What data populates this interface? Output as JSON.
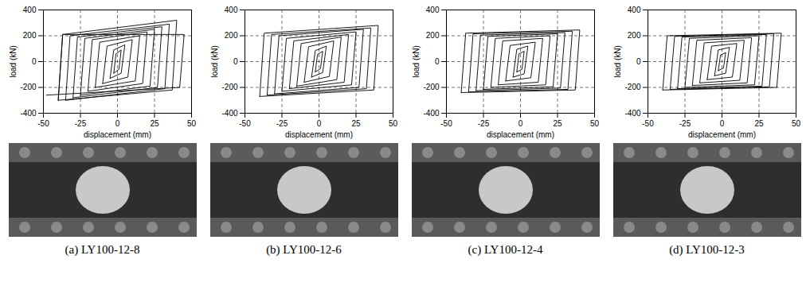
{
  "chart_data": [
    {
      "type": "line",
      "caption": "(a) LY100-12-8",
      "x_label": "displacement (mm)",
      "y_label": "load (kN)",
      "xlim": [
        -50,
        50
      ],
      "xticks": [
        -50,
        -25,
        0,
        25,
        50
      ],
      "ylim": [
        -400,
        400
      ],
      "yticks": [
        -400,
        -200,
        0,
        200,
        400
      ],
      "grid": true,
      "color": "#000000",
      "x": [
        -2.5,
        -1,
        2.5,
        1,
        -2.5,
        null,
        -5,
        -2.5,
        5,
        2.5,
        -5,
        null,
        -10,
        -7,
        10,
        7,
        -10,
        null,
        -15,
        -12,
        15,
        12,
        -15,
        null,
        -20,
        -17,
        20,
        17,
        -20,
        null,
        -25,
        -22,
        25,
        22,
        -25,
        null,
        -30,
        -27,
        30,
        27,
        -30,
        null,
        -35,
        -32,
        35,
        32,
        -35,
        null,
        -40,
        -37,
        40,
        37,
        -40,
        -37,
        45,
        42,
        -48
      ],
      "values": [
        -90,
        60,
        90,
        -60,
        -90,
        null,
        -130,
        90,
        130,
        -90,
        -130,
        null,
        -170,
        120,
        170,
        -120,
        -170,
        null,
        -200,
        150,
        200,
        -150,
        -200,
        null,
        -230,
        170,
        230,
        -170,
        -230,
        null,
        -260,
        180,
        250,
        -190,
        -260,
        null,
        -280,
        190,
        270,
        -200,
        -280,
        null,
        -300,
        200,
        290,
        -210,
        -300,
        null,
        -300,
        210,
        320,
        -220,
        -300,
        210,
        210,
        -200,
        -260
      ]
    },
    {
      "type": "line",
      "caption": "(b) LY100-12-6",
      "x_label": "displacement (mm)",
      "y_label": "load (kN)",
      "xlim": [
        -50,
        50
      ],
      "xticks": [
        -50,
        -25,
        0,
        25,
        50
      ],
      "ylim": [
        -400,
        400
      ],
      "yticks": [
        -400,
        -200,
        0,
        200,
        400
      ],
      "grid": true,
      "color": "#000000",
      "x": [
        -2.5,
        -1,
        2.5,
        1,
        -2.5,
        null,
        -5,
        -2.5,
        5,
        2.5,
        -5,
        null,
        -10,
        -7,
        10,
        7,
        -10,
        null,
        -15,
        -12,
        15,
        12,
        -15,
        null,
        -20,
        -17,
        20,
        17,
        -20,
        null,
        -25,
        -22,
        25,
        22,
        -25,
        null,
        -30,
        -27,
        30,
        27,
        -30,
        null,
        -35,
        -32,
        35,
        32,
        -35,
        null,
        -40,
        -37,
        40,
        37,
        -40
      ],
      "values": [
        -80,
        55,
        80,
        -55,
        -80,
        null,
        -120,
        85,
        120,
        -85,
        -120,
        null,
        -160,
        115,
        160,
        -115,
        -160,
        null,
        -190,
        140,
        190,
        -140,
        -190,
        null,
        -210,
        160,
        210,
        -160,
        -210,
        null,
        -230,
        180,
        230,
        -180,
        -230,
        null,
        -250,
        200,
        250,
        -200,
        -250,
        null,
        -260,
        210,
        260,
        -210,
        -260,
        null,
        -270,
        220,
        280,
        -220,
        -270
      ]
    },
    {
      "type": "line",
      "caption": "(c) LY100-12-4",
      "x_label": "displacement (mm)",
      "y_label": "load (kN)",
      "xlim": [
        -50,
        50
      ],
      "xticks": [
        -50,
        -25,
        0,
        25,
        50
      ],
      "ylim": [
        -400,
        400
      ],
      "yticks": [
        -400,
        -200,
        0,
        200,
        400
      ],
      "grid": true,
      "color": "#000000",
      "x": [
        -2.5,
        -1,
        2.5,
        1,
        -2.5,
        null,
        -5,
        -2.5,
        5,
        2.5,
        -5,
        null,
        -10,
        -7,
        10,
        7,
        -10,
        null,
        -15,
        -12,
        15,
        12,
        -15,
        null,
        -20,
        -17,
        20,
        17,
        -20,
        null,
        -25,
        -22,
        25,
        22,
        -25,
        null,
        -30,
        -27,
        30,
        27,
        -30,
        null,
        -35,
        -32,
        35,
        32,
        -35,
        null,
        -40,
        -37,
        40,
        37,
        -40
      ],
      "values": [
        -80,
        60,
        80,
        -60,
        -80,
        null,
        -120,
        95,
        120,
        -95,
        -120,
        null,
        -150,
        125,
        150,
        -125,
        -150,
        null,
        -180,
        160,
        180,
        -160,
        -180,
        null,
        -200,
        180,
        200,
        -180,
        -200,
        null,
        -215,
        195,
        215,
        -195,
        -215,
        null,
        -225,
        205,
        225,
        -205,
        -225,
        null,
        -235,
        215,
        235,
        -215,
        -235,
        null,
        -240,
        220,
        245,
        -220,
        -240
      ]
    },
    {
      "type": "line",
      "caption": "(d) LY100-12-3",
      "x_label": "displacement (mm)",
      "y_label": "load (kN)",
      "xlim": [
        -50,
        50
      ],
      "xticks": [
        -50,
        -25,
        0,
        25,
        50
      ],
      "ylim": [
        -400,
        400
      ],
      "yticks": [
        -400,
        -200,
        0,
        200,
        400
      ],
      "grid": true,
      "color": "#000000",
      "x": [
        -2.5,
        -1,
        2.5,
        1,
        -2.5,
        null,
        -5,
        -2.5,
        5,
        2.5,
        -5,
        null,
        -10,
        -7,
        10,
        7,
        -10,
        null,
        -15,
        -12,
        15,
        12,
        -15,
        null,
        -20,
        -17,
        20,
        17,
        -20,
        null,
        -25,
        -22,
        25,
        22,
        -25,
        null,
        -30,
        -27,
        30,
        27,
        -30,
        null,
        -35,
        -32,
        35,
        32,
        -35,
        null,
        -40,
        -37,
        40,
        37,
        -40
      ],
      "values": [
        -70,
        50,
        70,
        -50,
        -70,
        null,
        -110,
        90,
        110,
        -90,
        -110,
        null,
        -140,
        120,
        140,
        -120,
        -140,
        null,
        -165,
        145,
        165,
        -145,
        -165,
        null,
        -185,
        165,
        185,
        -165,
        -185,
        null,
        -200,
        180,
        200,
        -180,
        -200,
        null,
        -210,
        190,
        210,
        -190,
        -210,
        null,
        -215,
        195,
        215,
        -195,
        -215,
        null,
        -220,
        200,
        220,
        -200,
        -220
      ]
    }
  ]
}
